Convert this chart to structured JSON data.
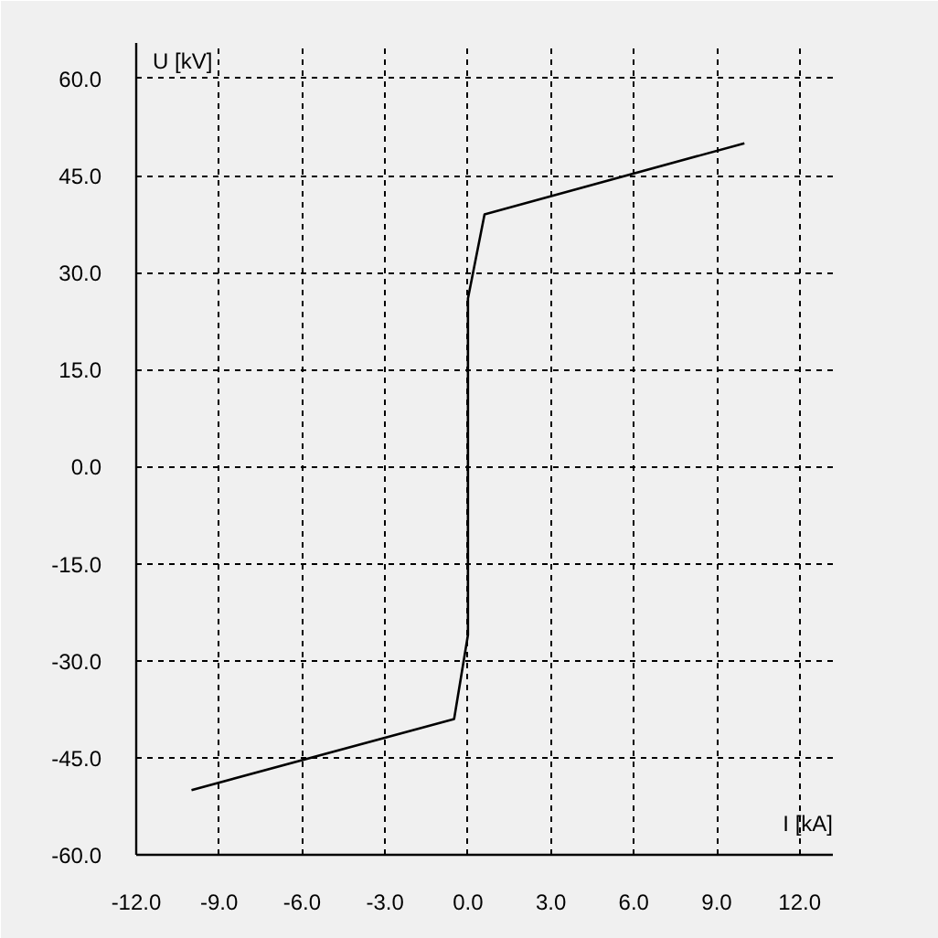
{
  "chart_data": {
    "type": "line",
    "xlabel": "I [kA]",
    "ylabel": "U [kV]",
    "x": [
      -10,
      -0.5,
      0,
      0,
      0.6,
      10
    ],
    "series": [
      {
        "color": "#000000",
        "values": [
          -50,
          -39,
          -26,
          26,
          39,
          50
        ]
      }
    ],
    "xlim": [
      -12,
      13.2
    ],
    "ylim": [
      -60,
      65.5
    ],
    "xticks": [
      {
        "value": -12,
        "label": "-12.0"
      },
      {
        "value": -9,
        "label": "-9.0"
      },
      {
        "value": -6,
        "label": "-6.0"
      },
      {
        "value": -3,
        "label": "-3.0"
      },
      {
        "value": 0,
        "label": "0.0"
      },
      {
        "value": 3,
        "label": "3.0"
      },
      {
        "value": 6,
        "label": "6.0"
      },
      {
        "value": 9,
        "label": "9.0"
      },
      {
        "value": 12,
        "label": "12.0"
      }
    ],
    "yticks": [
      {
        "value": -60,
        "label": "-60.0"
      },
      {
        "value": -45,
        "label": "-45.0"
      },
      {
        "value": -30,
        "label": "-30.0"
      },
      {
        "value": -15,
        "label": "-15.0"
      },
      {
        "value": 0,
        "label": "0.0"
      },
      {
        "value": 15,
        "label": "15.0"
      },
      {
        "value": 30,
        "label": "30.0"
      },
      {
        "value": 45,
        "label": "45.0"
      },
      {
        "value": 60,
        "label": "60.0"
      }
    ],
    "grid": true,
    "line_style": "solid"
  }
}
